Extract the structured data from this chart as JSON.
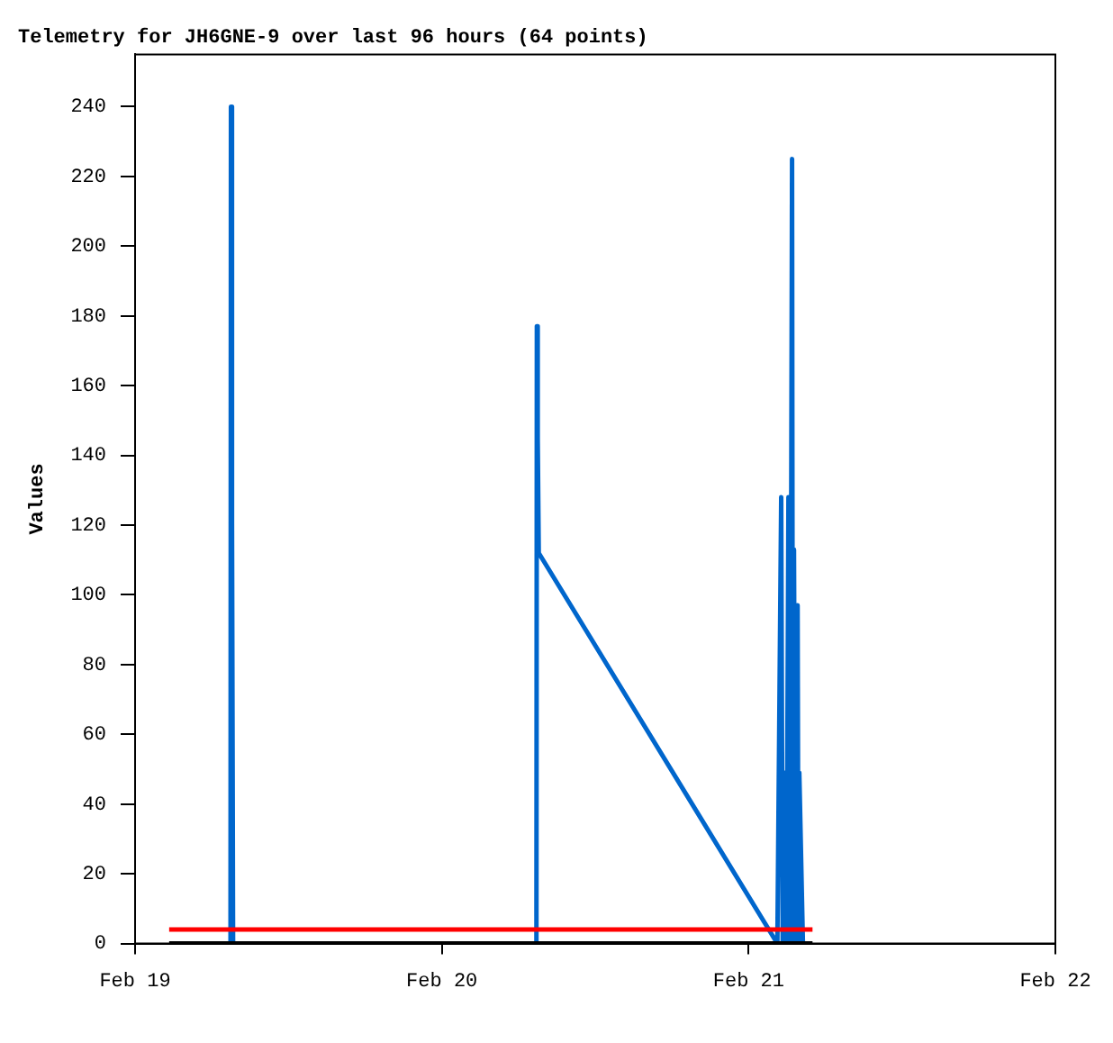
{
  "chart_data": {
    "type": "line",
    "title": "Telemetry for JH6GNE-9 over last 96 hours (64 points)",
    "ylabel": "Values",
    "xlim": [
      "--02-19T00:00",
      "--02-22T00:00"
    ],
    "xticks": [
      {
        "value": "--02-19T00:00",
        "label": "Feb 19"
      },
      {
        "value": "--02-20T00:00",
        "label": "Feb 20"
      },
      {
        "value": "--02-21T00:00",
        "label": "Feb 21"
      },
      {
        "value": "--02-22T00:00",
        "label": "Feb 22"
      }
    ],
    "ylim": [
      0,
      255
    ],
    "yticks": [
      0,
      20,
      40,
      60,
      80,
      100,
      120,
      140,
      160,
      180,
      200,
      220,
      240
    ],
    "grid": false,
    "legend": false,
    "marker": "none",
    "series": [
      {
        "color": "#000000",
        "x": [
          "--02-19T02:40",
          "--02-21T05:00"
        ],
        "values": [
          0,
          0
        ]
      },
      {
        "color": "#ff0000",
        "x": [
          "--02-19T02:40",
          "--02-21T05:00"
        ],
        "values": [
          4,
          4
        ]
      },
      {
        "color": "#0066cc",
        "x": [
          "--02-19T07:28",
          "--02-19T07:30",
          "--02-19T07:35",
          "--02-19T07:40",
          "--02-20T07:24",
          "--02-20T07:26",
          "--02-20T07:30",
          "--02-20T07:35",
          "--02-21T02:15",
          "--02-21T02:33",
          "--02-21T02:40",
          "--02-21T02:50",
          "--02-21T02:58",
          "--02-21T03:07",
          "--02-21T03:15",
          "--02-21T03:24",
          "--02-21T03:28",
          "--02-21T03:33",
          "--02-21T03:40",
          "--02-21T03:50",
          "--02-21T03:54",
          "--02-21T03:58",
          "--02-21T04:15"
        ],
        "values": [
          0,
          240,
          121,
          0,
          0,
          177,
          145,
          112,
          0,
          128,
          0,
          49,
          0,
          128,
          0,
          225,
          0,
          113,
          0,
          97,
          0,
          49,
          0
        ]
      }
    ]
  }
}
